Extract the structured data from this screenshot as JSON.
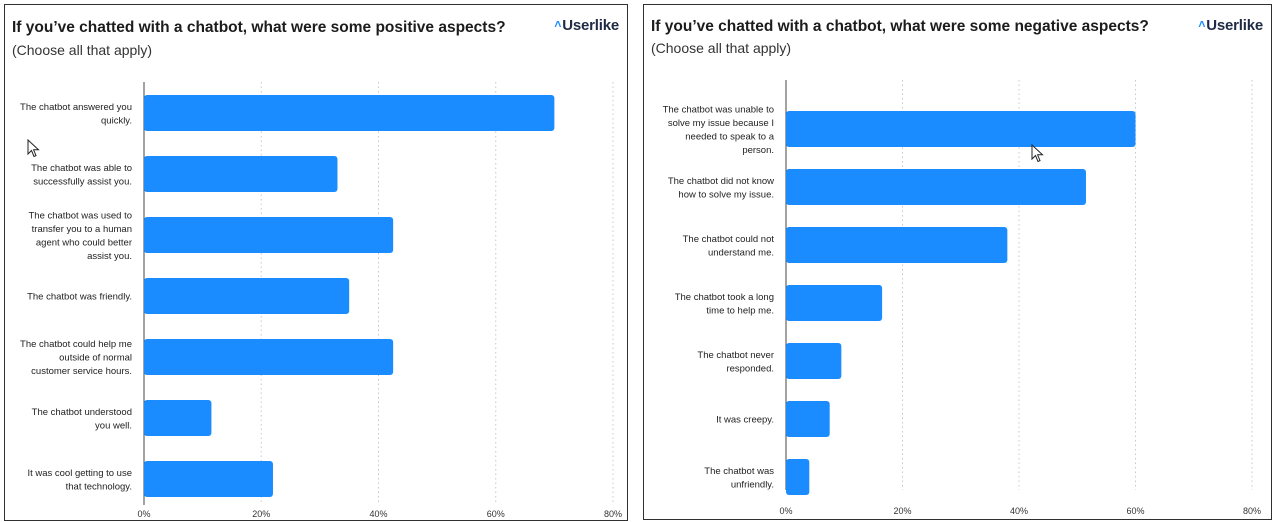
{
  "chart_data": [
    {
      "type": "bar",
      "orientation": "horizontal",
      "title": "If you’ve chatted with a chatbot, what were some positive aspects?",
      "subtitle": "(Choose all that apply)",
      "logo_text": "Userlike",
      "categories": [
        [
          "The chatbot answered you",
          "quickly."
        ],
        [
          "The chatbot was able to",
          "successfully assist you."
        ],
        [
          "The chatbot was used to",
          "transfer you to a human",
          "agent who could better",
          "assist you."
        ],
        [
          "The chatbot was friendly."
        ],
        [
          "The chatbot could help me",
          "outside of normal",
          "customer service hours."
        ],
        [
          "The chatbot understood",
          "you well."
        ],
        [
          "It was cool getting to use",
          "that technology."
        ]
      ],
      "values": [
        70,
        33,
        42.5,
        35,
        42.5,
        11.5,
        22
      ],
      "xlim": [
        0,
        80
      ],
      "x_ticks": [
        "0%",
        "20%",
        "40%",
        "60%",
        "80%"
      ],
      "grid": "vertical-dotted",
      "bar_color": "#1a8cff"
    },
    {
      "type": "bar",
      "orientation": "horizontal",
      "title": "If you’ve chatted with a chatbot, what were some negative aspects?",
      "subtitle": "(Choose all that apply)",
      "logo_text": "Userlike",
      "categories": [
        [
          "The chatbot was unable to",
          "solve my issue because I",
          "needed to speak to a",
          "person."
        ],
        [
          "The chatbot did not know",
          "how to solve my issue."
        ],
        [
          "The chatbot could not",
          "understand me."
        ],
        [
          "The chatbot took a long",
          "time to help me."
        ],
        [
          "The chatbot never",
          "responded."
        ],
        [
          "It was creepy."
        ],
        [
          "The chatbot was",
          "unfriendly."
        ]
      ],
      "values": [
        60,
        51.5,
        38,
        16.5,
        9.5,
        7.5,
        4
      ],
      "xlim": [
        0,
        80
      ],
      "x_ticks": [
        "0%",
        "20%",
        "40%",
        "60%",
        "80%"
      ],
      "grid": "vertical-dotted",
      "bar_color": "#1a8cff"
    }
  ]
}
